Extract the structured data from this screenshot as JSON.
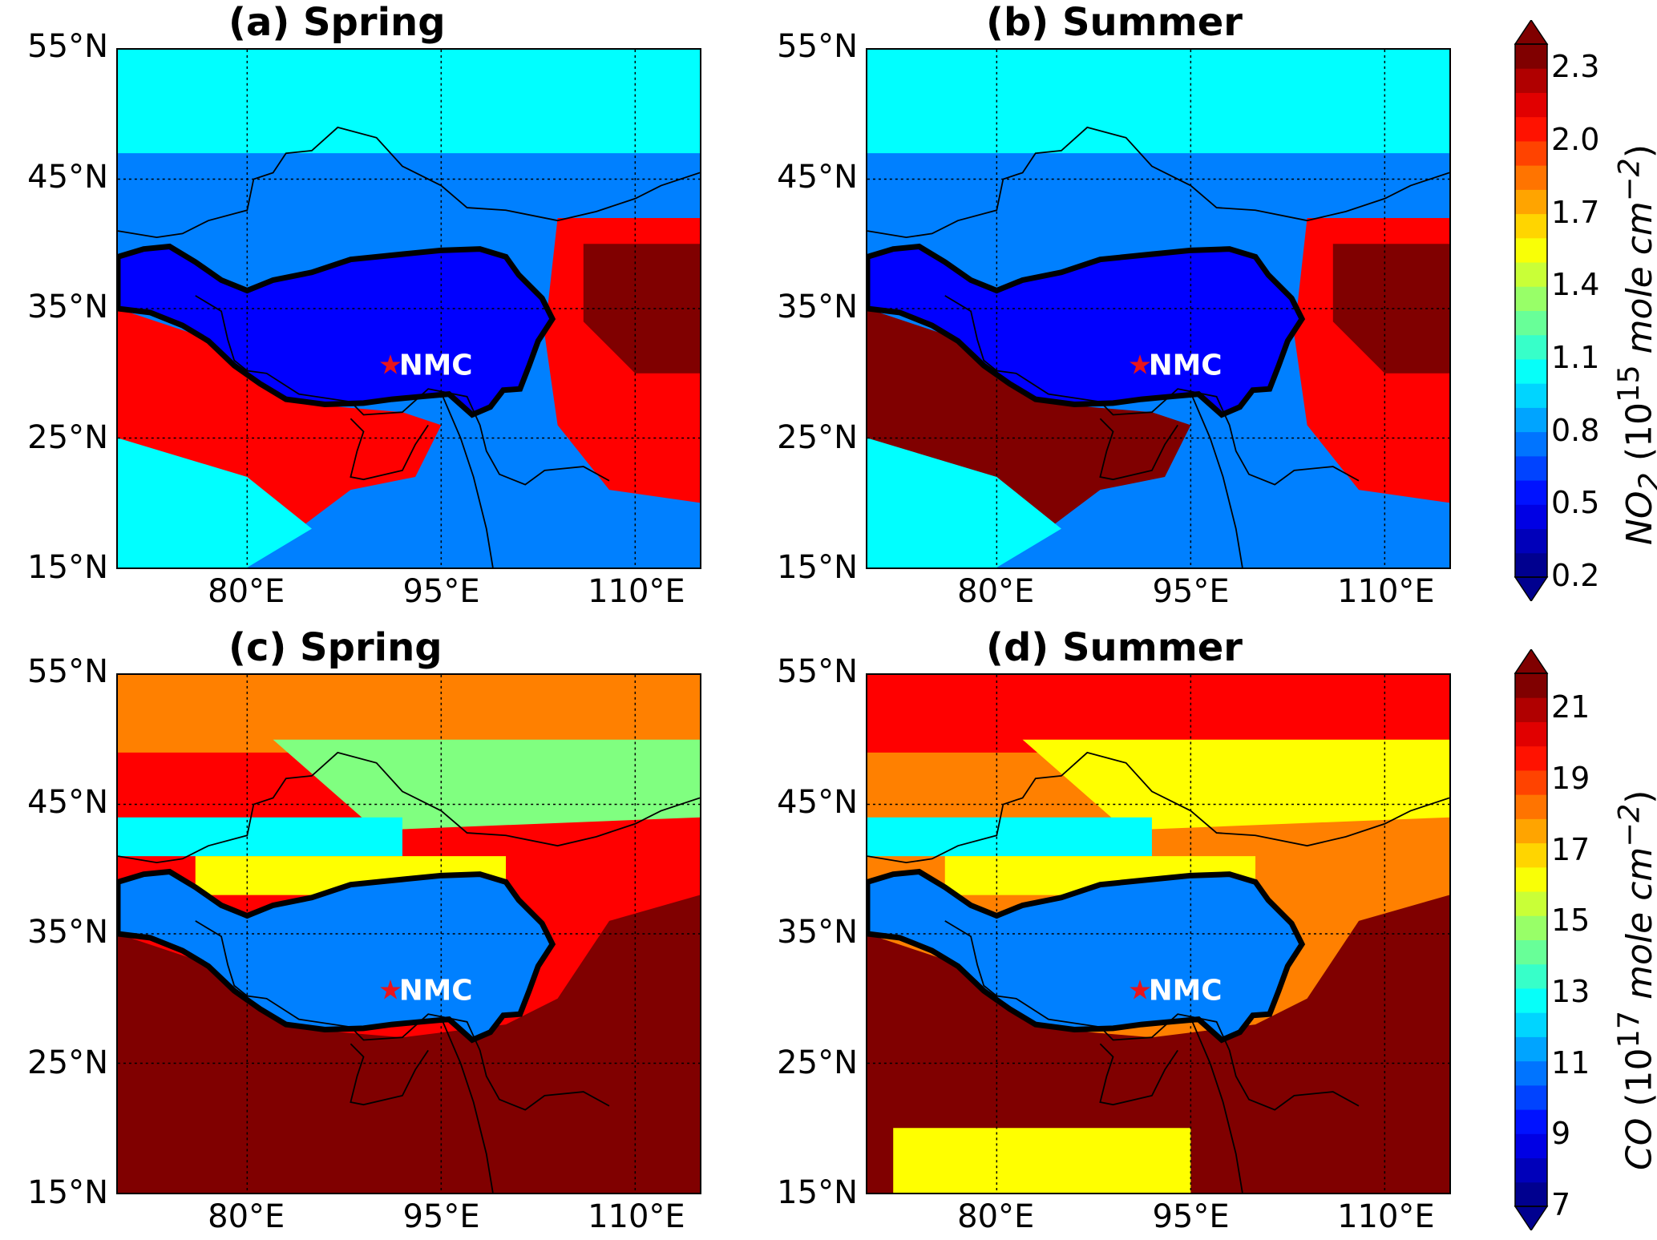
{
  "panels": [
    {
      "title": "(a) Spring",
      "station": "NMC"
    },
    {
      "title": "(b) Summer",
      "station": "NMC"
    },
    {
      "title": "(c) Spring",
      "station": "NMC"
    },
    {
      "title": "(d) Summer",
      "station": "NMC"
    }
  ],
  "axes": {
    "lat_ticks": [
      "55°N",
      "45°N",
      "35°N",
      "25°N",
      "15°N"
    ],
    "lon_ticks": [
      "80°E",
      "95°E",
      "110°E"
    ],
    "lat_range": [
      15,
      55
    ],
    "lon_range": [
      70,
      115
    ]
  },
  "colorbars": [
    {
      "variable": "NO",
      "subscript": "2",
      "unit_text": " (10",
      "exponent": "15",
      "unit_rest": " mole cm",
      "unit_exp": "−2",
      "ticks": [
        "2.3",
        "2.0",
        "1.7",
        "1.4",
        "1.1",
        "0.8",
        "0.5",
        "0.2"
      ],
      "range": [
        0.2,
        2.4
      ]
    },
    {
      "variable": "CO",
      "subscript": "",
      "unit_text": " (10",
      "exponent": "17",
      "unit_rest": " mole cm",
      "unit_exp": "−2",
      "ticks": [
        "21",
        "19",
        "17",
        "15",
        "13",
        "11",
        "9",
        "7"
      ],
      "range": [
        7,
        22
      ]
    }
  ],
  "station_marker_color": "#e8141b",
  "colormap": [
    "#00008f",
    "#0000ff",
    "#0080ff",
    "#00ffff",
    "#80ff80",
    "#ffff00",
    "#ff8000",
    "#ff0000",
    "#800000"
  ]
}
